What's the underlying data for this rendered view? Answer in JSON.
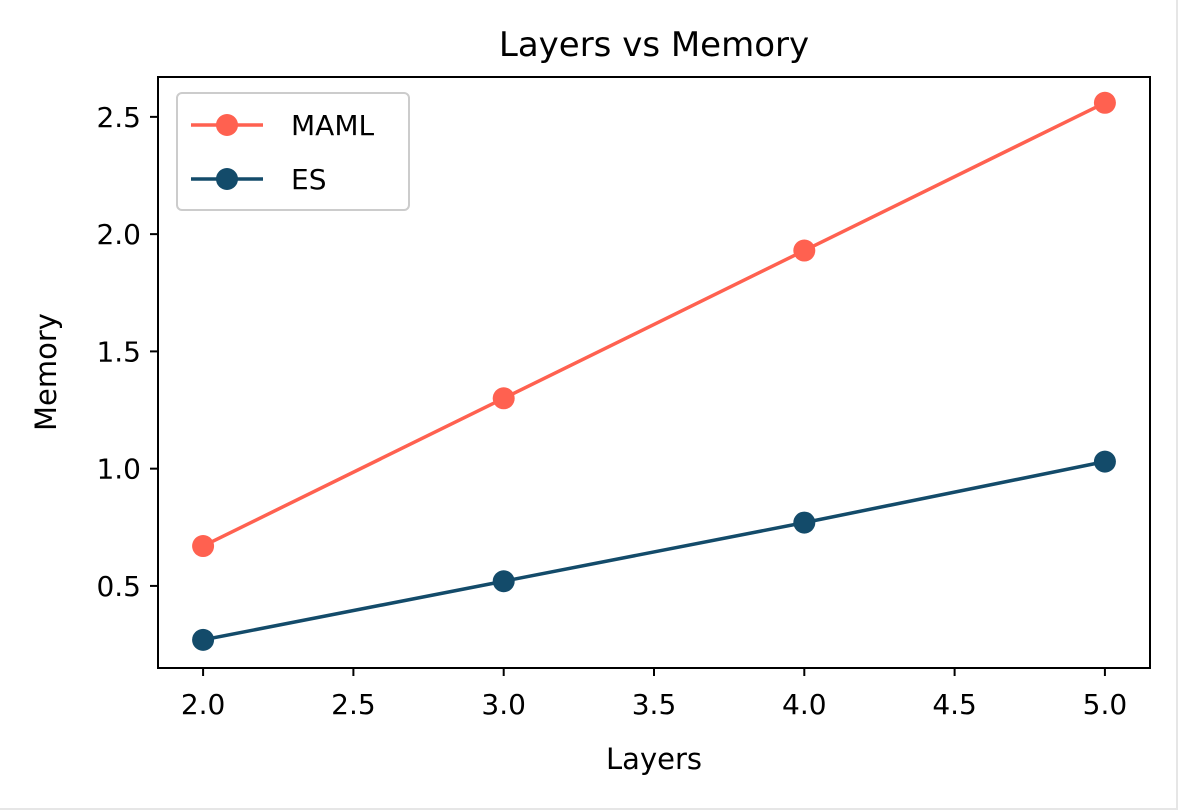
{
  "chart_data": {
    "type": "line",
    "title": "Layers vs Memory",
    "xlabel": "Layers",
    "ylabel": "Memory",
    "xlim": [
      1.85,
      5.15
    ],
    "ylim": [
      0.15,
      2.67
    ],
    "xticks": [
      2.0,
      2.5,
      3.0,
      3.5,
      4.0,
      4.5,
      5.0
    ],
    "xtick_labels": [
      "2.0",
      "2.5",
      "3.0",
      "3.5",
      "4.0",
      "4.5",
      "5.0"
    ],
    "yticks": [
      0.5,
      1.0,
      1.5,
      2.0,
      2.5
    ],
    "ytick_labels": [
      "0.5",
      "1.0",
      "1.5",
      "2.0",
      "2.5"
    ],
    "grid": false,
    "legend_position": "upper-left",
    "x": [
      2,
      3,
      4,
      5
    ],
    "series": [
      {
        "name": "MAML",
        "color": "#FF6150",
        "values": [
          0.67,
          1.3,
          1.93,
          2.56
        ]
      },
      {
        "name": "ES",
        "color": "#134B6A",
        "values": [
          0.27,
          0.52,
          0.77,
          1.03
        ]
      }
    ]
  }
}
